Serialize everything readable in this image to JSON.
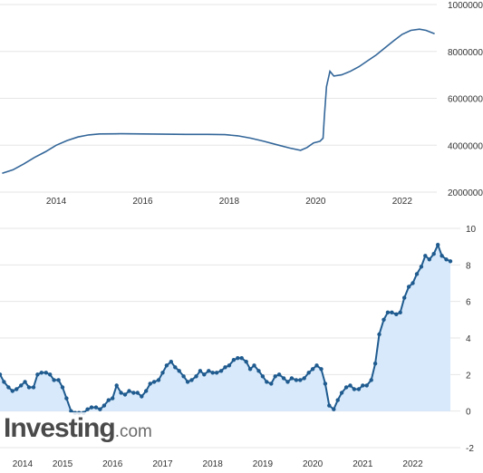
{
  "watermark": {
    "brand_main": "Investing",
    "brand_suffix": ".com"
  },
  "colors": {
    "line": "#336699",
    "line_dark": "#1f5b8f",
    "area_fill": "#d7e9fb",
    "grid": "#e6e6e6",
    "text": "#333333"
  },
  "chart_data": [
    {
      "type": "line",
      "title": "",
      "xlabel": "",
      "ylabel": "",
      "xlim": [
        2012.7,
        2022.8
      ],
      "ylim": [
        2000000,
        10000000
      ],
      "grid": true,
      "x_ticks": [
        {
          "value": 2014,
          "label": "2014"
        },
        {
          "value": 2016,
          "label": "2016"
        },
        {
          "value": 2018,
          "label": "2018"
        },
        {
          "value": 2020,
          "label": "2020"
        },
        {
          "value": 2022,
          "label": "2022"
        }
      ],
      "y_ticks": [
        {
          "value": 10000000,
          "label": "10000000"
        },
        {
          "value": 8000000,
          "label": "8000000"
        },
        {
          "value": 6000000,
          "label": "6000000"
        },
        {
          "value": 4000000,
          "label": "4000000"
        },
        {
          "value": 2000000,
          "label": "2000000"
        }
      ],
      "series": [
        {
          "points": [
            [
              2012.75,
              2800000
            ],
            [
              2013.0,
              2950000
            ],
            [
              2013.25,
              3200000
            ],
            [
              2013.5,
              3480000
            ],
            [
              2013.75,
              3720000
            ],
            [
              2014.0,
              4000000
            ],
            [
              2014.25,
              4200000
            ],
            [
              2014.5,
              4350000
            ],
            [
              2014.75,
              4440000
            ],
            [
              2015.0,
              4480000
            ],
            [
              2015.5,
              4490000
            ],
            [
              2016.0,
              4480000
            ],
            [
              2016.5,
              4470000
            ],
            [
              2017.0,
              4460000
            ],
            [
              2017.5,
              4460000
            ],
            [
              2017.9,
              4450000
            ],
            [
              2018.2,
              4400000
            ],
            [
              2018.5,
              4300000
            ],
            [
              2018.8,
              4170000
            ],
            [
              2019.1,
              4020000
            ],
            [
              2019.4,
              3880000
            ],
            [
              2019.65,
              3780000
            ],
            [
              2019.8,
              3900000
            ],
            [
              2019.95,
              4100000
            ],
            [
              2020.1,
              4170000
            ],
            [
              2020.17,
              4300000
            ],
            [
              2020.2,
              5200000
            ],
            [
              2020.25,
              6500000
            ],
            [
              2020.33,
              7150000
            ],
            [
              2020.42,
              6950000
            ],
            [
              2020.6,
              7000000
            ],
            [
              2020.8,
              7150000
            ],
            [
              2021.0,
              7350000
            ],
            [
              2021.2,
              7600000
            ],
            [
              2021.4,
              7850000
            ],
            [
              2021.6,
              8150000
            ],
            [
              2021.8,
              8450000
            ],
            [
              2022.0,
              8730000
            ],
            [
              2022.2,
              8900000
            ],
            [
              2022.4,
              8950000
            ],
            [
              2022.55,
              8900000
            ],
            [
              2022.75,
              8750000
            ]
          ]
        }
      ]
    },
    {
      "type": "area",
      "title": "",
      "xlabel": "",
      "ylabel": "",
      "xlim": [
        2013.75,
        2022.95
      ],
      "ylim": [
        -2,
        10
      ],
      "grid": true,
      "x_ticks": [
        {
          "value": 2014,
          "label": "2014"
        },
        {
          "value": 2015,
          "label": "2015"
        },
        {
          "value": 2016,
          "label": "2016"
        },
        {
          "value": 2017,
          "label": "2017"
        },
        {
          "value": 2018,
          "label": "2018"
        },
        {
          "value": 2019,
          "label": "2019"
        },
        {
          "value": 2020,
          "label": "2020"
        },
        {
          "value": 2021,
          "label": "2021"
        },
        {
          "value": 2022,
          "label": "2022"
        }
      ],
      "y_ticks": [
        {
          "value": 10,
          "label": "10"
        },
        {
          "value": 8,
          "label": "8"
        },
        {
          "value": 6,
          "label": "6"
        },
        {
          "value": 4,
          "label": "4"
        },
        {
          "value": 2,
          "label": "2"
        },
        {
          "value": 0,
          "label": "0"
        },
        {
          "value": -2,
          "label": "-2"
        }
      ],
      "series": [
        {
          "points": [
            [
              2013.75,
              2.0
            ],
            [
              2013.83,
              1.6
            ],
            [
              2013.92,
              1.3
            ],
            [
              2014.0,
              1.1
            ],
            [
              2014.08,
              1.2
            ],
            [
              2014.17,
              1.4
            ],
            [
              2014.25,
              1.6
            ],
            [
              2014.33,
              1.3
            ],
            [
              2014.42,
              1.3
            ],
            [
              2014.5,
              2.0
            ],
            [
              2014.58,
              2.1
            ],
            [
              2014.67,
              2.1
            ],
            [
              2014.75,
              2.0
            ],
            [
              2014.83,
              1.7
            ],
            [
              2014.92,
              1.7
            ],
            [
              2015.0,
              1.3
            ],
            [
              2015.08,
              0.7
            ],
            [
              2015.17,
              0.0
            ],
            [
              2015.25,
              -0.1
            ],
            [
              2015.33,
              -0.1
            ],
            [
              2015.42,
              -0.1
            ],
            [
              2015.5,
              0.1
            ],
            [
              2015.58,
              0.2
            ],
            [
              2015.67,
              0.2
            ],
            [
              2015.75,
              0.1
            ],
            [
              2015.83,
              0.3
            ],
            [
              2015.92,
              0.6
            ],
            [
              2016.0,
              0.7
            ],
            [
              2016.08,
              1.4
            ],
            [
              2016.17,
              1.0
            ],
            [
              2016.25,
              0.9
            ],
            [
              2016.33,
              1.1
            ],
            [
              2016.42,
              1.0
            ],
            [
              2016.5,
              1.0
            ],
            [
              2016.58,
              0.8
            ],
            [
              2016.67,
              1.1
            ],
            [
              2016.75,
              1.5
            ],
            [
              2016.83,
              1.6
            ],
            [
              2016.92,
              1.7
            ],
            [
              2017.0,
              2.1
            ],
            [
              2017.08,
              2.5
            ],
            [
              2017.17,
              2.7
            ],
            [
              2017.25,
              2.4
            ],
            [
              2017.33,
              2.2
            ],
            [
              2017.42,
              1.9
            ],
            [
              2017.5,
              1.6
            ],
            [
              2017.58,
              1.7
            ],
            [
              2017.67,
              1.9
            ],
            [
              2017.75,
              2.2
            ],
            [
              2017.83,
              2.0
            ],
            [
              2017.92,
              2.2
            ],
            [
              2018.0,
              2.1
            ],
            [
              2018.08,
              2.1
            ],
            [
              2018.17,
              2.2
            ],
            [
              2018.25,
              2.4
            ],
            [
              2018.33,
              2.5
            ],
            [
              2018.42,
              2.8
            ],
            [
              2018.5,
              2.9
            ],
            [
              2018.58,
              2.9
            ],
            [
              2018.67,
              2.7
            ],
            [
              2018.75,
              2.3
            ],
            [
              2018.83,
              2.5
            ],
            [
              2018.92,
              2.2
            ],
            [
              2019.0,
              1.9
            ],
            [
              2019.08,
              1.6
            ],
            [
              2019.17,
              1.5
            ],
            [
              2019.25,
              1.9
            ],
            [
              2019.33,
              2.0
            ],
            [
              2019.42,
              1.8
            ],
            [
              2019.5,
              1.6
            ],
            [
              2019.58,
              1.8
            ],
            [
              2019.67,
              1.7
            ],
            [
              2019.75,
              1.7
            ],
            [
              2019.83,
              1.8
            ],
            [
              2019.92,
              2.1
            ],
            [
              2020.0,
              2.3
            ],
            [
              2020.08,
              2.5
            ],
            [
              2020.17,
              2.3
            ],
            [
              2020.25,
              1.5
            ],
            [
              2020.33,
              0.3
            ],
            [
              2020.42,
              0.1
            ],
            [
              2020.5,
              0.6
            ],
            [
              2020.58,
              1.0
            ],
            [
              2020.67,
              1.3
            ],
            [
              2020.75,
              1.4
            ],
            [
              2020.83,
              1.2
            ],
            [
              2020.92,
              1.2
            ],
            [
              2021.0,
              1.4
            ],
            [
              2021.08,
              1.4
            ],
            [
              2021.17,
              1.7
            ],
            [
              2021.25,
              2.6
            ],
            [
              2021.33,
              4.2
            ],
            [
              2021.42,
              5.0
            ],
            [
              2021.5,
              5.4
            ],
            [
              2021.58,
              5.4
            ],
            [
              2021.67,
              5.3
            ],
            [
              2021.75,
              5.4
            ],
            [
              2021.83,
              6.2
            ],
            [
              2021.92,
              6.8
            ],
            [
              2022.0,
              7.0
            ],
            [
              2022.08,
              7.5
            ],
            [
              2022.17,
              7.9
            ],
            [
              2022.25,
              8.5
            ],
            [
              2022.33,
              8.3
            ],
            [
              2022.42,
              8.6
            ],
            [
              2022.5,
              9.1
            ],
            [
              2022.58,
              8.5
            ],
            [
              2022.67,
              8.3
            ],
            [
              2022.75,
              8.2
            ]
          ]
        }
      ]
    }
  ]
}
